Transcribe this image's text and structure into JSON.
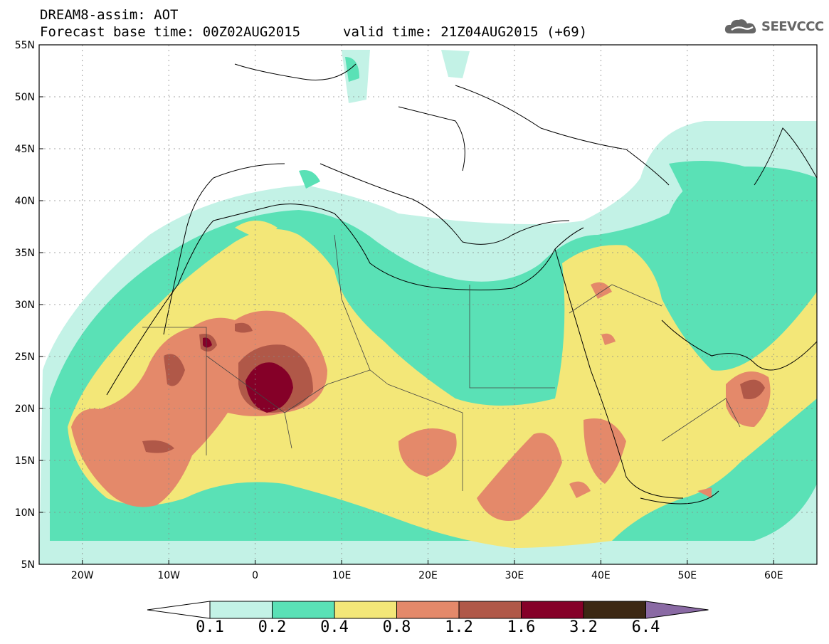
{
  "header": {
    "title_line1": "DREAM8-assim: AOT",
    "title_line2": "Forecast base time: 00Z02AUG2015",
    "valid_time": "valid time: 21Z04AUG2015 (+69)",
    "logo_text": "SEEVCCC",
    "logo_icon": "cloud-icon"
  },
  "map": {
    "product": "Aerosol optical thickness (dust)",
    "lon_range": [
      -25,
      65
    ],
    "lat_range": [
      5,
      55
    ],
    "x_ticks": [
      {
        "lon": -20,
        "label": "20W"
      },
      {
        "lon": -10,
        "label": "10W"
      },
      {
        "lon": 0,
        "label": "0"
      },
      {
        "lon": 10,
        "label": "10E"
      },
      {
        "lon": 20,
        "label": "20E"
      },
      {
        "lon": 30,
        "label": "30E"
      },
      {
        "lon": 40,
        "label": "40E"
      },
      {
        "lon": 50,
        "label": "50E"
      },
      {
        "lon": 60,
        "label": "60E"
      }
    ],
    "y_ticks": [
      {
        "lat": 55,
        "label": "55N"
      },
      {
        "lat": 50,
        "label": "50N"
      },
      {
        "lat": 45,
        "label": "45N"
      },
      {
        "lat": 40,
        "label": "40N"
      },
      {
        "lat": 35,
        "label": "35N"
      },
      {
        "lat": 30,
        "label": "30N"
      },
      {
        "lat": 25,
        "label": "25N"
      },
      {
        "lat": 20,
        "label": "20N"
      },
      {
        "lat": 15,
        "label": "15N"
      },
      {
        "lat": 10,
        "label": "10N"
      },
      {
        "lat": 5,
        "label": "5N"
      }
    ],
    "grid": true
  },
  "colorbar": {
    "colors": [
      "#ffffff",
      "#c3f2e6",
      "#5ae1b6",
      "#f3e778",
      "#e4896a",
      "#b05848",
      "#850028",
      "#3c2814",
      "#8a6aa4"
    ],
    "labels": [
      "0.1",
      "0.2",
      "0.4",
      "0.8",
      "1.2",
      "1.6",
      "3.2",
      "6.4"
    ]
  }
}
